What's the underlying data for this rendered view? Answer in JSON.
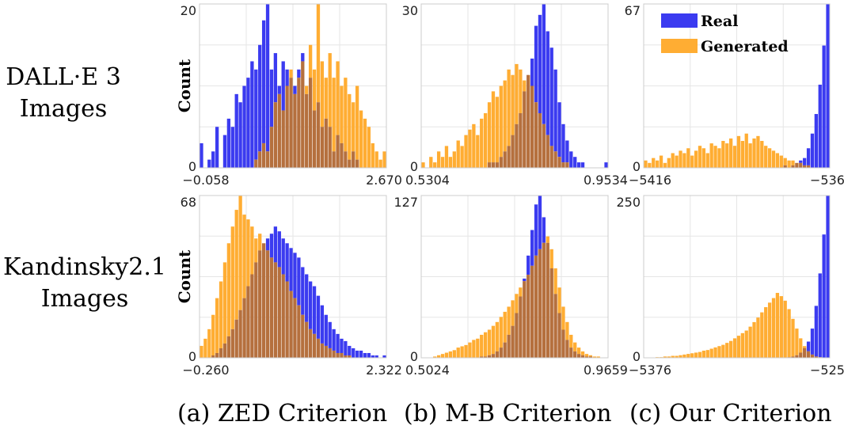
{
  "row_labels": [
    {
      "line1": "DALL·E 3",
      "line2": "Images"
    },
    {
      "line1": "Kandinsky2.1",
      "line2": "Images"
    }
  ],
  "column_labels": [
    "(a) ZED Criterion",
    "(b) M-B Criterion",
    "(c) Our Criterion"
  ],
  "colors": {
    "real": "#3b3bf0",
    "generated": "#ffad33",
    "overlap": "#b5703e",
    "grid": "#e6e6e6",
    "frame": "#cccccc"
  },
  "chart_data": [
    {
      "type": "histogram",
      "row": "DALL·E 3 Images",
      "column": "(a) ZED Criterion",
      "ylabel": "Count",
      "xlim": [
        -0.058,
        2.67
      ],
      "ylim": [
        0,
        20
      ],
      "x_ticks": [
        "−0.058",
        "2.670"
      ],
      "y_ticks": [
        "0",
        "20"
      ],
      "bins": 48,
      "series": [
        {
          "name": "Real",
          "counts": [
            3,
            0,
            1,
            2,
            5,
            0,
            4,
            6,
            5,
            9,
            8,
            10,
            11,
            13,
            12,
            15,
            18,
            20,
            12,
            14,
            10,
            13,
            12,
            11,
            10,
            12,
            14,
            9,
            11,
            7,
            8,
            5,
            6,
            5,
            2,
            4,
            3,
            2,
            1,
            2,
            1,
            0,
            0,
            0,
            0,
            0,
            0,
            0
          ]
        },
        {
          "name": "Generated",
          "counts": [
            0,
            0,
            0,
            0,
            0,
            0,
            0,
            0,
            0,
            0,
            0,
            0,
            0,
            0,
            1,
            2,
            3,
            2,
            5,
            8,
            9,
            7,
            10,
            12,
            9,
            11,
            13,
            10,
            15,
            12,
            20,
            13,
            11,
            14,
            11,
            13,
            10,
            11,
            9,
            8,
            10,
            7,
            6,
            5,
            3,
            2,
            1,
            2
          ]
        }
      ]
    },
    {
      "type": "histogram",
      "row": "DALL·E 3 Images",
      "column": "(b) M-B Criterion",
      "ylabel": "",
      "xlim": [
        0.5304,
        0.9534
      ],
      "ylim": [
        0,
        30
      ],
      "x_ticks": [
        "0.5304",
        "0.9534"
      ],
      "y_ticks": [
        "0",
        "30"
      ],
      "bins": 48,
      "series": [
        {
          "name": "Real",
          "counts": [
            0,
            0,
            0,
            0,
            0,
            0,
            0,
            0,
            0,
            0,
            0,
            0,
            0,
            0,
            0,
            0,
            0,
            1,
            1,
            1,
            2,
            3,
            4,
            6,
            8,
            10,
            14,
            17,
            20,
            26,
            28,
            30,
            25,
            22,
            18,
            12,
            8,
            5,
            3,
            2,
            1,
            1,
            0,
            0,
            0,
            0,
            0,
            1
          ]
        },
        {
          "name": "Generated",
          "counts": [
            1,
            0,
            2,
            1,
            3,
            2,
            4,
            2,
            3,
            5,
            4,
            6,
            7,
            8,
            6,
            9,
            10,
            12,
            14,
            13,
            15,
            16,
            18,
            17,
            19,
            18,
            16,
            17,
            15,
            12,
            10,
            8,
            6,
            4,
            3,
            2,
            1,
            1,
            0,
            0,
            0,
            0,
            0,
            0,
            0,
            0,
            0,
            0
          ]
        }
      ]
    },
    {
      "type": "histogram",
      "row": "DALL·E 3 Images",
      "column": "(c) Our Criterion",
      "ylabel": "",
      "xlim": [
        -5416,
        -536
      ],
      "ylim": [
        0,
        67
      ],
      "x_ticks": [
        "−5416",
        "−536"
      ],
      "y_ticks": [
        "0",
        "67"
      ],
      "legend": {
        "position": "top-left",
        "entries": [
          "Real",
          "Generated"
        ]
      },
      "bins": 48,
      "series": [
        {
          "name": "Real",
          "counts": [
            0,
            0,
            0,
            0,
            0,
            0,
            0,
            0,
            0,
            0,
            0,
            0,
            0,
            0,
            0,
            0,
            0,
            0,
            0,
            0,
            0,
            0,
            0,
            0,
            0,
            0,
            0,
            0,
            0,
            0,
            0,
            0,
            0,
            0,
            0,
            0,
            1,
            0,
            1,
            2,
            3,
            4,
            8,
            14,
            22,
            34,
            50,
            67
          ]
        },
        {
          "name": "Generated",
          "counts": [
            3,
            2,
            4,
            3,
            5,
            2,
            4,
            6,
            5,
            7,
            6,
            8,
            5,
            7,
            9,
            8,
            6,
            10,
            9,
            8,
            11,
            10,
            12,
            9,
            13,
            11,
            14,
            10,
            12,
            13,
            11,
            9,
            8,
            7,
            6,
            5,
            4,
            3,
            3,
            2,
            2,
            1,
            1,
            0,
            0,
            0,
            0,
            0
          ]
        }
      ]
    },
    {
      "type": "histogram",
      "row": "Kandinsky2.1 Images",
      "column": "(a) ZED Criterion",
      "ylabel": "Count",
      "xlim": [
        -0.26,
        2.322
      ],
      "ylim": [
        0,
        68
      ],
      "x_ticks": [
        "−0.260",
        "2.322"
      ],
      "y_ticks": [
        "0",
        "68"
      ],
      "bins": 48,
      "series": [
        {
          "name": "Real",
          "counts": [
            0,
            0,
            0,
            1,
            2,
            4,
            6,
            9,
            12,
            16,
            20,
            25,
            30,
            35,
            40,
            45,
            48,
            50,
            52,
            55,
            53,
            50,
            48,
            46,
            44,
            42,
            38,
            35,
            32,
            30,
            26,
            22,
            18,
            15,
            12,
            10,
            8,
            7,
            5,
            4,
            3,
            3,
            2,
            2,
            1,
            1,
            0,
            1
          ]
        },
        {
          "name": "Generated",
          "counts": [
            5,
            8,
            12,
            18,
            25,
            32,
            40,
            48,
            55,
            62,
            68,
            60,
            58,
            55,
            50,
            52,
            48,
            45,
            42,
            40,
            38,
            35,
            32,
            28,
            25,
            22,
            18,
            15,
            12,
            10,
            8,
            6,
            5,
            4,
            3,
            2,
            2,
            1,
            1,
            0,
            0,
            0,
            0,
            0,
            0,
            0,
            0,
            0
          ]
        }
      ]
    },
    {
      "type": "histogram",
      "row": "Kandinsky2.1 Images",
      "column": "(b) M-B Criterion",
      "ylabel": "",
      "xlim": [
        0.5024,
        0.9659
      ],
      "ylim": [
        0,
        127
      ],
      "x_ticks": [
        "0.5024",
        "0.9659"
      ],
      "y_ticks": [
        "0",
        "127"
      ],
      "bins": 48,
      "series": [
        {
          "name": "Real",
          "counts": [
            0,
            0,
            0,
            0,
            0,
            0,
            0,
            0,
            0,
            0,
            0,
            0,
            0,
            0,
            0,
            1,
            1,
            2,
            3,
            5,
            8,
            12,
            18,
            25,
            35,
            48,
            62,
            80,
            100,
            120,
            127,
            110,
            90,
            70,
            50,
            35,
            22,
            14,
            8,
            5,
            3,
            2,
            1,
            1,
            0,
            0,
            0,
            0
          ]
        },
        {
          "name": "Generated",
          "counts": [
            0,
            0,
            0,
            1,
            2,
            3,
            4,
            5,
            6,
            8,
            9,
            10,
            12,
            14,
            15,
            18,
            20,
            22,
            25,
            28,
            32,
            36,
            40,
            45,
            50,
            55,
            60,
            65,
            72,
            80,
            85,
            90,
            95,
            85,
            70,
            55,
            40,
            28,
            18,
            12,
            8,
            5,
            3,
            2,
            1,
            1,
            0,
            0
          ]
        }
      ]
    },
    {
      "type": "histogram",
      "row": "Kandinsky2.1 Images",
      "column": "(c) Our Criterion",
      "ylabel": "",
      "xlim": [
        -5376,
        -525
      ],
      "ylim": [
        0,
        250
      ],
      "x_ticks": [
        "−5376",
        "−525"
      ],
      "y_ticks": [
        "0",
        "250"
      ],
      "bins": 48,
      "series": [
        {
          "name": "Real",
          "counts": [
            0,
            0,
            0,
            0,
            0,
            0,
            0,
            0,
            0,
            0,
            0,
            0,
            0,
            0,
            0,
            0,
            0,
            0,
            0,
            0,
            0,
            0,
            0,
            0,
            0,
            0,
            0,
            0,
            0,
            0,
            0,
            0,
            0,
            0,
            0,
            0,
            0,
            1,
            2,
            4,
            8,
            15,
            25,
            45,
            80,
            130,
            190,
            250
          ]
        },
        {
          "name": "Generated",
          "counts": [
            0,
            0,
            0,
            1,
            1,
            2,
            2,
            3,
            3,
            4,
            5,
            6,
            7,
            8,
            9,
            11,
            12,
            14,
            16,
            18,
            20,
            23,
            26,
            30,
            34,
            38,
            42,
            48,
            55,
            62,
            70,
            78,
            85,
            92,
            100,
            95,
            88,
            75,
            60,
            45,
            30,
            18,
            10,
            5,
            2,
            1,
            0,
            0
          ]
        }
      ]
    }
  ]
}
